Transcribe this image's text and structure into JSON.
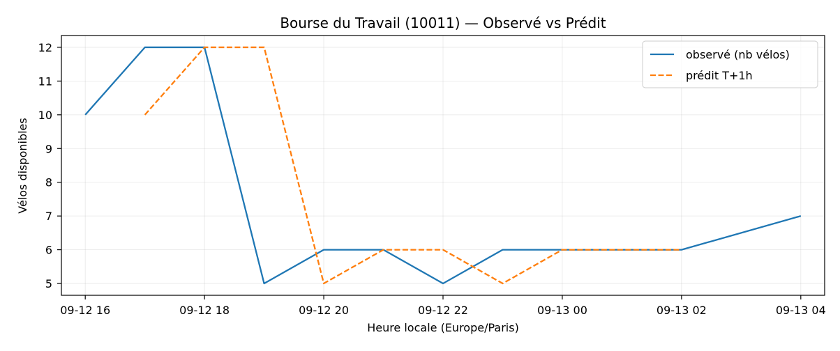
{
  "chart_data": {
    "type": "line",
    "title": "Bourse du Travail (10011) — Observé vs Prédit",
    "xlabel": "Heure locale (Europe/Paris)",
    "ylabel": "Vélos disponibles",
    "x_ticks": [
      "09-12 16",
      "09-12 18",
      "09-12 20",
      "09-12 22",
      "09-13 00",
      "09-13 02",
      "09-13 04"
    ],
    "y_ticks": [
      5,
      6,
      7,
      8,
      9,
      10,
      11,
      12
    ],
    "xlim": [
      "2024-09-12 15:36",
      "2024-09-13 04:24"
    ],
    "ylim": [
      4.65,
      12.35
    ],
    "grid": true,
    "legend_position": "top-right",
    "series": [
      {
        "name": "observé (nb vélos)",
        "color": "#1f77b4",
        "style": "solid",
        "x": [
          "2024-09-12 16:00",
          "2024-09-12 17:00",
          "2024-09-12 18:00",
          "2024-09-12 19:00",
          "2024-09-12 20:00",
          "2024-09-12 21:00",
          "2024-09-12 22:00",
          "2024-09-12 23:00",
          "2024-09-13 00:00",
          "2024-09-13 01:00",
          "2024-09-13 02:00",
          "2024-09-13 04:00"
        ],
        "y": [
          10,
          12,
          12,
          5,
          6,
          6,
          5,
          6,
          6,
          6,
          6,
          7
        ]
      },
      {
        "name": "prédit T+1h",
        "color": "#ff7f0e",
        "style": "dashed",
        "x": [
          "2024-09-12 17:00",
          "2024-09-12 18:00",
          "2024-09-12 19:00",
          "2024-09-12 20:00",
          "2024-09-12 21:00",
          "2024-09-12 22:00",
          "2024-09-12 23:00",
          "2024-09-13 00:00",
          "2024-09-13 01:00",
          "2024-09-13 02:00"
        ],
        "y": [
          10,
          12,
          12,
          5,
          6,
          6,
          5,
          6,
          6,
          6
        ]
      }
    ]
  }
}
